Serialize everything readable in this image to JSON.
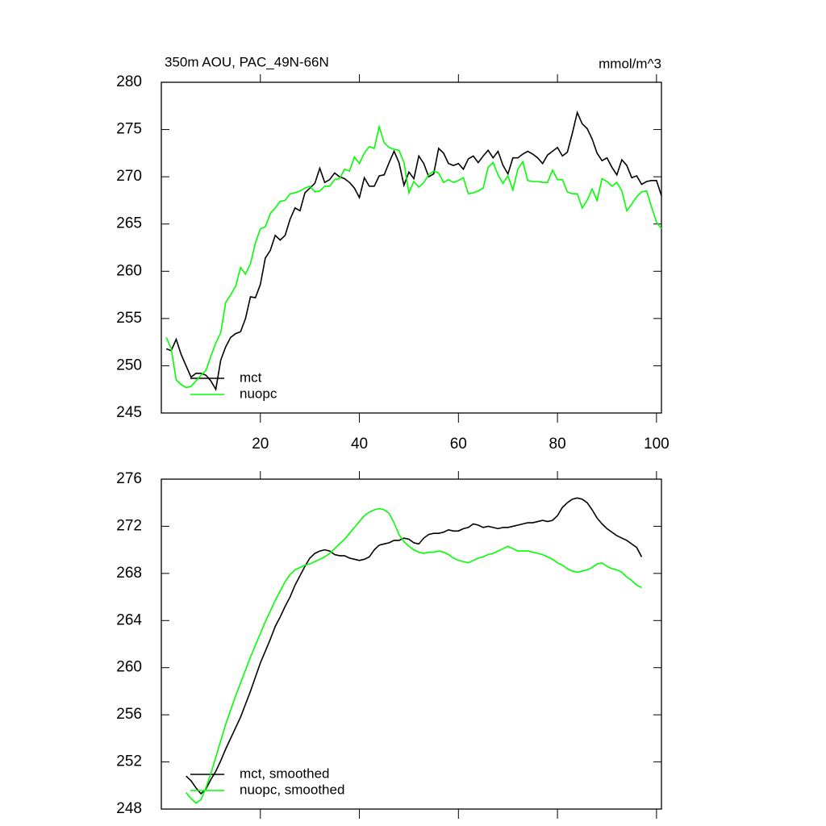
{
  "chart_data": [
    {
      "type": "line",
      "title": "350m AOU, PAC_49N-66N",
      "subtitle": "mmol/m^3",
      "x": [
        1,
        2,
        3,
        4,
        5,
        6,
        7,
        8,
        9,
        10,
        11,
        12,
        13,
        14,
        15,
        16,
        17,
        18,
        19,
        20,
        21,
        22,
        23,
        24,
        25,
        26,
        27,
        28,
        29,
        30,
        31,
        32,
        33,
        34,
        35,
        36,
        37,
        38,
        39,
        40,
        41,
        42,
        43,
        44,
        45,
        46,
        47,
        48,
        49,
        50,
        51,
        52,
        53,
        54,
        55,
        56,
        57,
        58,
        59,
        60,
        61,
        62,
        63,
        64,
        65,
        66,
        67,
        68,
        69,
        70,
        71,
        72,
        73,
        74,
        75,
        76,
        77,
        78,
        79,
        80,
        81,
        82,
        83,
        84,
        85,
        86,
        87,
        88,
        89,
        90,
        91,
        92,
        93,
        94,
        95,
        96,
        97,
        98,
        99,
        100,
        101
      ],
      "series": [
        {
          "name": "mct",
          "color": "#000000",
          "values": [
            251.8,
            251.6,
            252.8,
            251.2,
            250.0,
            248.8,
            249.2,
            249.2,
            249.0,
            248.4,
            247.5,
            250.6,
            252.0,
            253.0,
            253.4,
            253.6,
            255.0,
            257.3,
            257.2,
            258.6,
            261.4,
            262.2,
            263.8,
            263.3,
            263.8,
            265.5,
            266.7,
            266.4,
            268.3,
            268.8,
            269.3,
            270.9,
            269.4,
            269.7,
            270.4,
            270.0,
            269.8,
            269.4,
            268.8,
            267.8,
            269.9,
            269.0,
            269.0,
            270.1,
            270.2,
            271.5,
            272.7,
            271.5,
            269.1,
            270.5,
            269.8,
            272.2,
            271.4,
            270.0,
            270.3,
            273.0,
            272.5,
            271.4,
            271.2,
            271.4,
            270.8,
            271.9,
            272.2,
            271.5,
            272.2,
            272.8,
            272.0,
            272.7,
            271.2,
            270.3,
            272.0,
            272.0,
            272.4,
            272.7,
            272.4,
            272.0,
            271.4,
            272.3,
            272.7,
            273.1,
            272.2,
            272.6,
            274.6,
            276.8,
            275.6,
            275.1,
            274.0,
            272.5,
            271.7,
            272.0,
            271.0,
            270.2,
            271.8,
            271.2,
            269.9,
            270.1,
            269.2,
            269.5,
            269.6,
            269.6,
            268.0
          ]
        },
        {
          "name": "nuopc",
          "color": "#00ff00",
          "values": [
            253.0,
            251.8,
            248.5,
            248.0,
            247.7,
            247.8,
            248.4,
            249.0,
            249.5,
            251.0,
            252.4,
            253.5,
            256.7,
            257.5,
            258.4,
            260.4,
            259.7,
            260.8,
            263.0,
            264.5,
            264.7,
            266.1,
            266.7,
            267.4,
            267.5,
            268.2,
            268.3,
            268.5,
            268.8,
            269.0,
            268.4,
            268.5,
            269.0,
            269.0,
            269.7,
            269.8,
            270.8,
            270.6,
            272.1,
            271.4,
            272.5,
            273.2,
            273.0,
            275.3,
            273.6,
            273.1,
            272.9,
            272.8,
            271.5,
            268.3,
            269.5,
            268.9,
            269.4,
            270.2,
            270.6,
            270.4,
            269.4,
            269.7,
            269.4,
            269.6,
            269.9,
            268.2,
            268.3,
            268.5,
            268.8,
            271.0,
            271.5,
            270.2,
            269.3,
            270.1,
            268.6,
            270.8,
            271.6,
            269.6,
            269.5,
            269.5,
            269.4,
            269.4,
            270.7,
            269.7,
            269.7,
            268.4,
            268.2,
            268.2,
            266.7,
            267.5,
            268.7,
            267.5,
            269.8,
            269.5,
            269.0,
            269.4,
            268.5,
            266.4,
            267.1,
            267.9,
            268.4,
            268.5,
            266.8,
            265.2,
            264.5
          ]
        }
      ],
      "xlim": [
        0,
        101
      ],
      "xticks": [
        20,
        40,
        60,
        80,
        100
      ],
      "xticklabels": true,
      "ylim": [
        245,
        280
      ],
      "yticks": [
        245,
        250,
        255,
        260,
        265,
        270,
        275,
        280
      ],
      "legend": "lower left"
    },
    {
      "type": "line",
      "x": [
        5,
        6,
        7,
        8,
        9,
        10,
        11,
        12,
        13,
        14,
        15,
        16,
        17,
        18,
        19,
        20,
        21,
        22,
        23,
        24,
        25,
        26,
        27,
        28,
        29,
        30,
        31,
        32,
        33,
        34,
        35,
        36,
        37,
        38,
        39,
        40,
        41,
        42,
        43,
        44,
        45,
        46,
        47,
        48,
        49,
        50,
        51,
        52,
        53,
        54,
        55,
        56,
        57,
        58,
        59,
        60,
        61,
        62,
        63,
        64,
        65,
        66,
        67,
        68,
        69,
        70,
        71,
        72,
        73,
        74,
        75,
        76,
        77,
        78,
        79,
        80,
        81,
        82,
        83,
        84,
        85,
        86,
        87,
        88,
        89,
        90,
        91,
        92,
        93,
        94,
        95,
        96,
        97
      ],
      "series": [
        {
          "name": "mct, smoothed",
          "color": "#000000",
          "values": [
            250.8,
            250.4,
            249.8,
            249.3,
            249.7,
            250.5,
            251.2,
            252.1,
            253.1,
            254.0,
            254.9,
            255.8,
            256.9,
            258.0,
            259.2,
            260.4,
            261.4,
            262.4,
            263.5,
            264.3,
            265.2,
            266.0,
            267.0,
            267.8,
            268.6,
            269.3,
            269.7,
            269.9,
            270.0,
            269.9,
            269.6,
            269.5,
            269.5,
            269.3,
            269.2,
            269.1,
            269.2,
            269.4,
            270.0,
            270.4,
            270.5,
            270.6,
            270.8,
            270.8,
            271.0,
            270.9,
            270.6,
            270.5,
            271.0,
            271.3,
            271.4,
            271.4,
            271.5,
            271.7,
            271.6,
            271.6,
            271.8,
            271.9,
            272.2,
            272.1,
            271.9,
            272.0,
            271.9,
            271.8,
            271.9,
            271.9,
            272.0,
            272.1,
            272.2,
            272.3,
            272.3,
            272.4,
            272.5,
            272.4,
            272.5,
            272.9,
            273.6,
            274.0,
            274.3,
            274.4,
            274.3,
            274.0,
            273.4,
            272.7,
            272.2,
            271.8,
            271.5,
            271.2,
            271.0,
            270.8,
            270.5,
            270.2,
            269.4
          ]
        },
        {
          "name": "nuopc, smoothed",
          "color": "#00ff00",
          "values": [
            249.4,
            248.9,
            248.5,
            248.8,
            249.8,
            251.0,
            252.4,
            253.8,
            255.2,
            256.4,
            257.6,
            258.7,
            259.8,
            260.9,
            261.9,
            262.9,
            263.9,
            264.8,
            265.7,
            266.5,
            267.3,
            267.9,
            268.3,
            268.5,
            268.7,
            268.8,
            269.0,
            269.2,
            269.4,
            269.7,
            270.1,
            270.5,
            270.9,
            271.4,
            271.9,
            272.4,
            272.9,
            273.2,
            273.4,
            273.5,
            273.4,
            273.1,
            272.3,
            271.3,
            270.7,
            270.3,
            270.0,
            269.8,
            269.7,
            269.8,
            269.8,
            269.9,
            269.8,
            269.6,
            269.3,
            269.1,
            269.0,
            268.9,
            269.1,
            269.3,
            269.4,
            269.6,
            269.7,
            269.9,
            270.1,
            270.3,
            270.1,
            269.9,
            269.9,
            269.9,
            269.8,
            269.7,
            269.6,
            269.4,
            269.2,
            268.9,
            268.7,
            268.4,
            268.2,
            268.1,
            268.2,
            268.3,
            268.5,
            268.8,
            268.9,
            268.6,
            268.4,
            268.3,
            268.1,
            267.7,
            267.4,
            267.0,
            266.8
          ]
        }
      ],
      "xlim": [
        0,
        101
      ],
      "xticks": [
        20,
        40,
        60,
        80,
        100
      ],
      "xticklabels": false,
      "ylim": [
        248,
        276
      ],
      "yticks": [
        248,
        252,
        256,
        260,
        264,
        268,
        272,
        276
      ],
      "legend": "lower left"
    }
  ]
}
